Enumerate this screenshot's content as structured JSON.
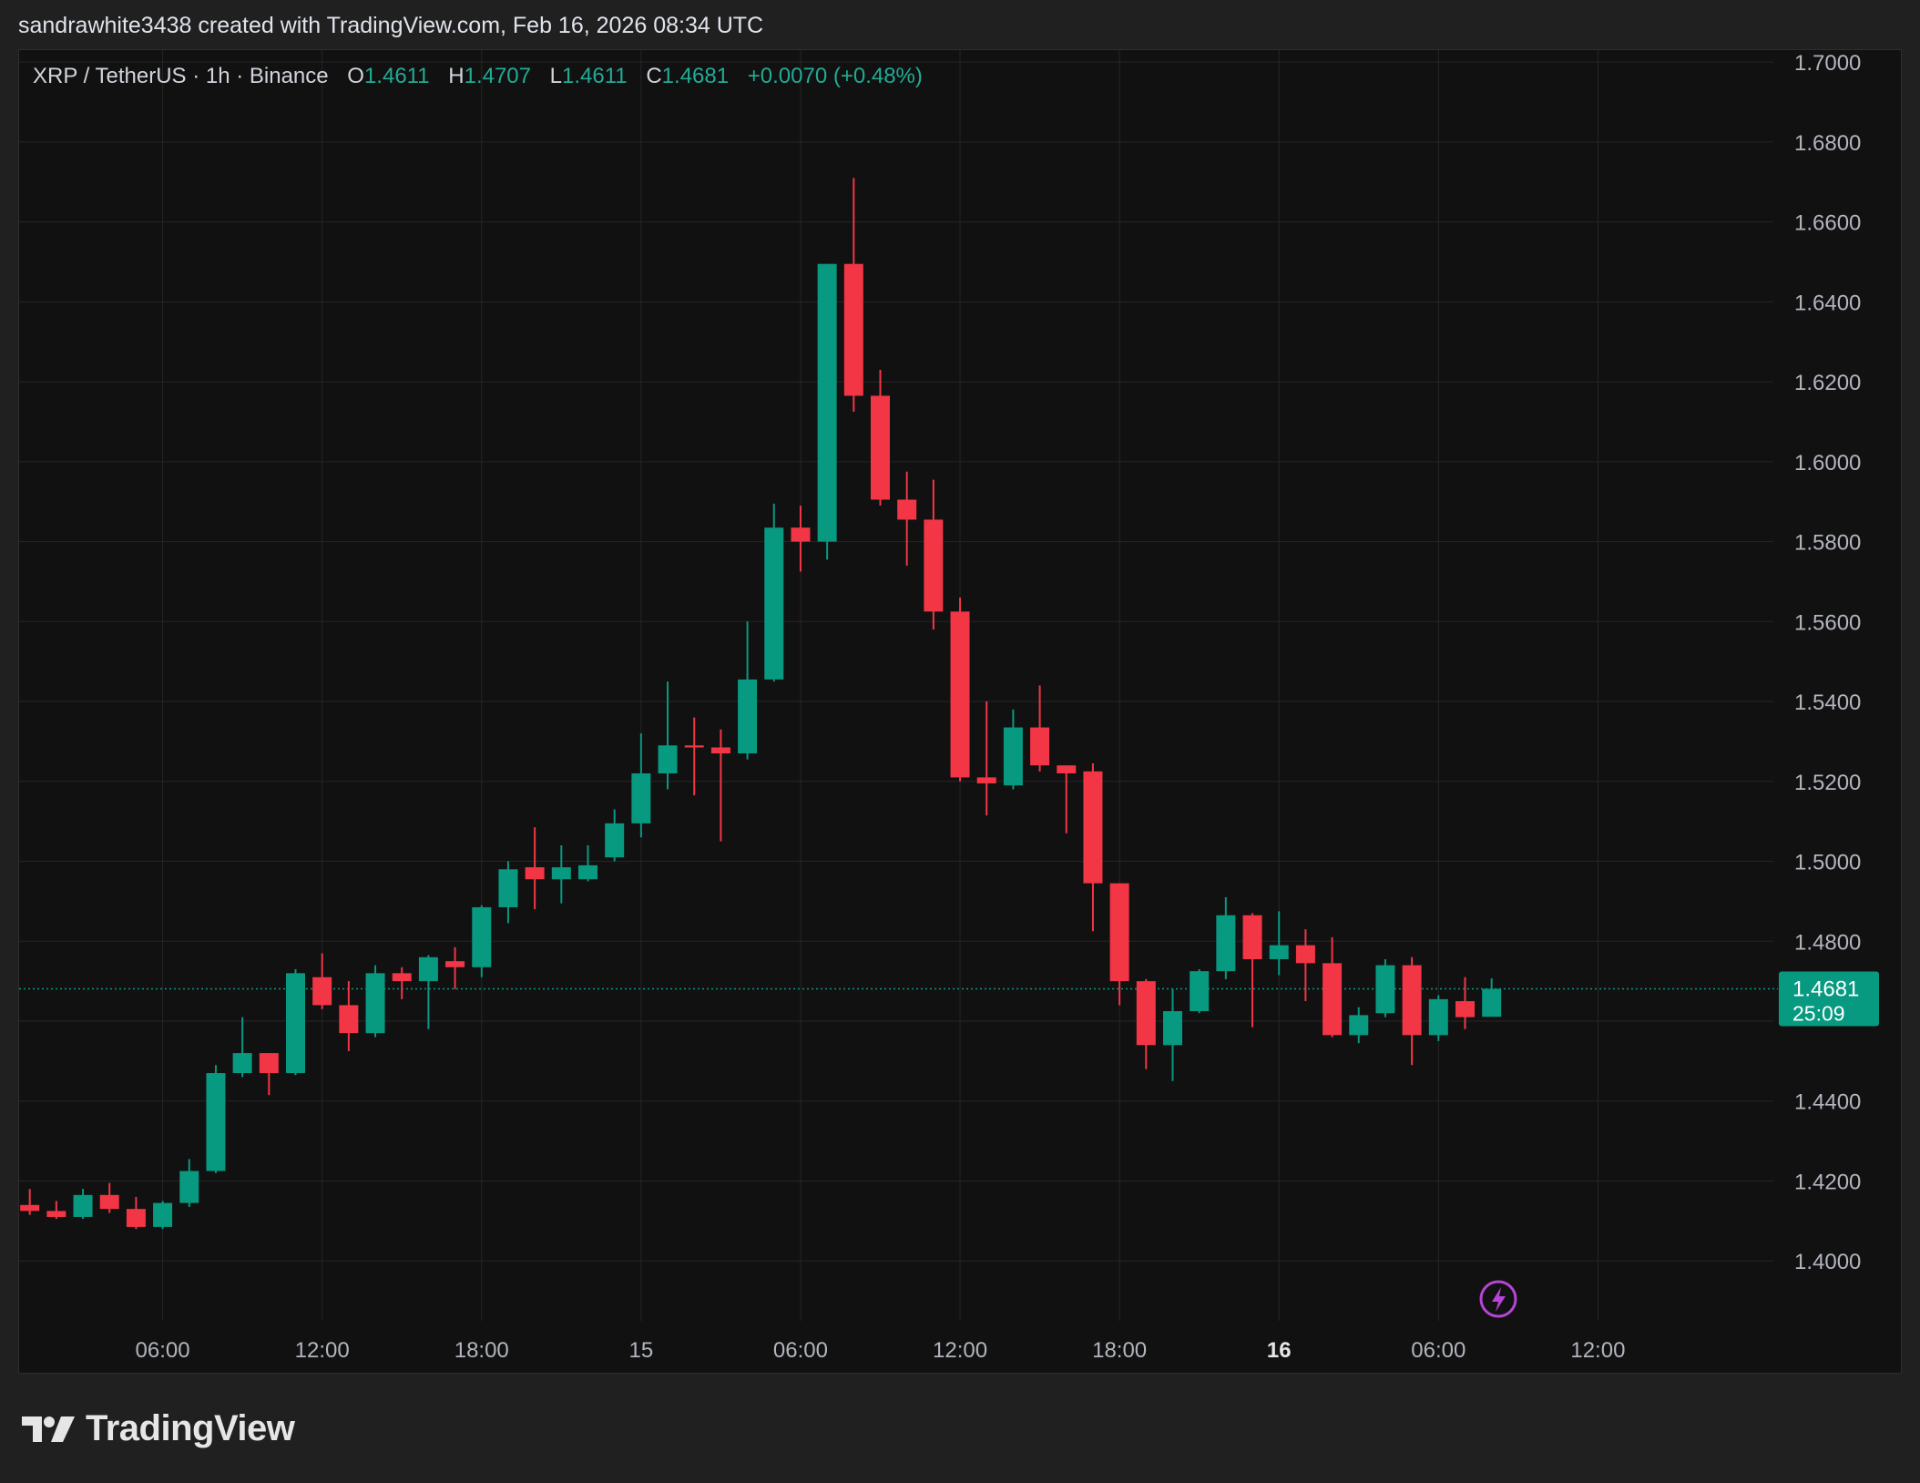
{
  "credit": "sandrawhite3438 created with TradingView.com, Feb 16, 2026 08:34 UTC",
  "legend": {
    "symbol": "XRP / TetherUS · 1h · Binance",
    "o_label": "O",
    "o": "1.4611",
    "h_label": "H",
    "h": "1.4707",
    "l_label": "L",
    "l": "1.4611",
    "c_label": "C",
    "c": "1.4681",
    "change": "+0.0070 (+0.48%)"
  },
  "price_tag": {
    "price": "1.4681",
    "countdown": "25:09"
  },
  "brand": "TradingView",
  "colors": {
    "up": "#089981",
    "down": "#f23645",
    "grid": "#262626",
    "axis_text": "#b2b5be",
    "legend_value": "#22ab94",
    "last_price_line": "#089981",
    "flash_icon": "#b545d6"
  },
  "icons": [
    "tradingview-logo-icon",
    "flash-icon"
  ],
  "chart_data": {
    "type": "candlestick",
    "title": "XRP / TetherUS · 1h · Binance",
    "interval": "1h",
    "y_axis_side": "right",
    "ylim": [
      1.385,
      1.703
    ],
    "y_ticks": [
      "1.7000",
      "1.6800",
      "1.6600",
      "1.6400",
      "1.6200",
      "1.6000",
      "1.5800",
      "1.5600",
      "1.5400",
      "1.5200",
      "1.5000",
      "1.4800",
      "1.4600",
      "1.4400",
      "1.4200",
      "1.4000"
    ],
    "y_tick_values": [
      1.7,
      1.68,
      1.66,
      1.64,
      1.62,
      1.6,
      1.58,
      1.56,
      1.54,
      1.52,
      1.5,
      1.48,
      1.46,
      1.44,
      1.42,
      1.4
    ],
    "y_hidden_ticks": [
      1.46
    ],
    "x_tick_labels": [
      "06:00",
      "12:00",
      "18:00",
      "15",
      "06:00",
      "12:00",
      "18:00",
      "16",
      "06:00",
      "12:00"
    ],
    "x_tick_hours": [
      6,
      12,
      18,
      24,
      30,
      36,
      42,
      48,
      54,
      60
    ],
    "x_tick_bold": [
      false,
      false,
      false,
      false,
      false,
      false,
      false,
      true,
      false,
      false
    ],
    "x_range_hours": [
      0.6,
      66.6
    ],
    "grid": true,
    "last_price": 1.4681,
    "candles": [
      {
        "h": 1,
        "o": 1.414,
        "hi": 1.418,
        "lo": 1.4115,
        "c": 1.4125
      },
      {
        "h": 2,
        "o": 1.4125,
        "hi": 1.415,
        "lo": 1.4105,
        "c": 1.411
      },
      {
        "h": 3,
        "o": 1.411,
        "hi": 1.418,
        "lo": 1.4105,
        "c": 1.4165
      },
      {
        "h": 4,
        "o": 1.4165,
        "hi": 1.4195,
        "lo": 1.412,
        "c": 1.413
      },
      {
        "h": 5,
        "o": 1.413,
        "hi": 1.416,
        "lo": 1.408,
        "c": 1.4085
      },
      {
        "h": 6,
        "o": 1.4085,
        "hi": 1.415,
        "lo": 1.408,
        "c": 1.4145
      },
      {
        "h": 7,
        "o": 1.4145,
        "hi": 1.4255,
        "lo": 1.4135,
        "c": 1.4225
      },
      {
        "h": 8,
        "o": 1.4225,
        "hi": 1.449,
        "lo": 1.422,
        "c": 1.447
      },
      {
        "h": 9,
        "o": 1.447,
        "hi": 1.461,
        "lo": 1.446,
        "c": 1.452
      },
      {
        "h": 10,
        "o": 1.452,
        "hi": 1.452,
        "lo": 1.4415,
        "c": 1.447
      },
      {
        "h": 11,
        "o": 1.447,
        "hi": 1.473,
        "lo": 1.4465,
        "c": 1.472
      },
      {
        "h": 12,
        "o": 1.471,
        "hi": 1.477,
        "lo": 1.463,
        "c": 1.464
      },
      {
        "h": 13,
        "o": 1.464,
        "hi": 1.47,
        "lo": 1.4525,
        "c": 1.457
      },
      {
        "h": 14,
        "o": 1.457,
        "hi": 1.474,
        "lo": 1.456,
        "c": 1.472
      },
      {
        "h": 15,
        "o": 1.472,
        "hi": 1.4735,
        "lo": 1.4655,
        "c": 1.47
      },
      {
        "h": 16,
        "o": 1.47,
        "hi": 1.4765,
        "lo": 1.458,
        "c": 1.476
      },
      {
        "h": 17,
        "o": 1.475,
        "hi": 1.4785,
        "lo": 1.468,
        "c": 1.4735
      },
      {
        "h": 18,
        "o": 1.4735,
        "hi": 1.489,
        "lo": 1.471,
        "c": 1.4885
      },
      {
        "h": 19,
        "o": 1.4885,
        "hi": 1.5,
        "lo": 1.4845,
        "c": 1.498
      },
      {
        "h": 20,
        "o": 1.4985,
        "hi": 1.5085,
        "lo": 1.488,
        "c": 1.4955
      },
      {
        "h": 21,
        "o": 1.4955,
        "hi": 1.504,
        "lo": 1.4895,
        "c": 1.4985
      },
      {
        "h": 22,
        "o": 1.4955,
        "hi": 1.504,
        "lo": 1.495,
        "c": 1.499
      },
      {
        "h": 23,
        "o": 1.501,
        "hi": 1.513,
        "lo": 1.5,
        "c": 1.5095
      },
      {
        "h": 24,
        "o": 1.5095,
        "hi": 1.532,
        "lo": 1.506,
        "c": 1.522
      },
      {
        "h": 25,
        "o": 1.522,
        "hi": 1.545,
        "lo": 1.518,
        "c": 1.529
      },
      {
        "h": 26,
        "o": 1.529,
        "hi": 1.536,
        "lo": 1.5165,
        "c": 1.5285
      },
      {
        "h": 27,
        "o": 1.5285,
        "hi": 1.533,
        "lo": 1.505,
        "c": 1.527
      },
      {
        "h": 28,
        "o": 1.527,
        "hi": 1.56,
        "lo": 1.5255,
        "c": 1.5455
      },
      {
        "h": 29,
        "o": 1.5455,
        "hi": 1.5895,
        "lo": 1.545,
        "c": 1.5835
      },
      {
        "h": 30,
        "o": 1.5835,
        "hi": 1.589,
        "lo": 1.5725,
        "c": 1.58
      },
      {
        "h": 31,
        "o": 1.58,
        "hi": 1.6495,
        "lo": 1.5755,
        "c": 1.6495
      },
      {
        "h": 32,
        "o": 1.6495,
        "hi": 1.671,
        "lo": 1.6125,
        "c": 1.6165
      },
      {
        "h": 33,
        "o": 1.6165,
        "hi": 1.623,
        "lo": 1.589,
        "c": 1.5905
      },
      {
        "h": 34,
        "o": 1.5905,
        "hi": 1.5975,
        "lo": 1.574,
        "c": 1.5855
      },
      {
        "h": 35,
        "o": 1.5855,
        "hi": 1.5955,
        "lo": 1.558,
        "c": 1.5625
      },
      {
        "h": 36,
        "o": 1.5625,
        "hi": 1.566,
        "lo": 1.52,
        "c": 1.521
      },
      {
        "h": 37,
        "o": 1.521,
        "hi": 1.54,
        "lo": 1.5115,
        "c": 1.5195
      },
      {
        "h": 38,
        "o": 1.519,
        "hi": 1.538,
        "lo": 1.518,
        "c": 1.5335
      },
      {
        "h": 39,
        "o": 1.5335,
        "hi": 1.544,
        "lo": 1.5225,
        "c": 1.524
      },
      {
        "h": 40,
        "o": 1.524,
        "hi": 1.524,
        "lo": 1.507,
        "c": 1.522
      },
      {
        "h": 41,
        "o": 1.5225,
        "hi": 1.5245,
        "lo": 1.4825,
        "c": 1.4945
      },
      {
        "h": 42,
        "o": 1.4945,
        "hi": 1.4945,
        "lo": 1.464,
        "c": 1.47
      },
      {
        "h": 43,
        "o": 1.47,
        "hi": 1.4705,
        "lo": 1.448,
        "c": 1.454
      },
      {
        "h": 44,
        "o": 1.454,
        "hi": 1.468,
        "lo": 1.445,
        "c": 1.4625
      },
      {
        "h": 45,
        "o": 1.4625,
        "hi": 1.473,
        "lo": 1.462,
        "c": 1.4725
      },
      {
        "h": 46,
        "o": 1.4725,
        "hi": 1.491,
        "lo": 1.4705,
        "c": 1.4865
      },
      {
        "h": 47,
        "o": 1.4865,
        "hi": 1.487,
        "lo": 1.4585,
        "c": 1.4755
      },
      {
        "h": 48,
        "o": 1.4755,
        "hi": 1.4875,
        "lo": 1.4715,
        "c": 1.479
      },
      {
        "h": 49,
        "o": 1.479,
        "hi": 1.483,
        "lo": 1.465,
        "c": 1.4745
      },
      {
        "h": 50,
        "o": 1.4745,
        "hi": 1.481,
        "lo": 1.456,
        "c": 1.4565
      },
      {
        "h": 51,
        "o": 1.4565,
        "hi": 1.4635,
        "lo": 1.4545,
        "c": 1.4615
      },
      {
        "h": 52,
        "o": 1.462,
        "hi": 1.4755,
        "lo": 1.461,
        "c": 1.474
      },
      {
        "h": 53,
        "o": 1.474,
        "hi": 1.476,
        "lo": 1.449,
        "c": 1.4565
      },
      {
        "h": 54,
        "o": 1.4565,
        "hi": 1.4665,
        "lo": 1.455,
        "c": 1.4655
      },
      {
        "h": 55,
        "o": 1.465,
        "hi": 1.471,
        "lo": 1.458,
        "c": 1.461
      },
      {
        "h": 56,
        "o": 1.4611,
        "hi": 1.4707,
        "lo": 1.4611,
        "c": 1.4681
      }
    ]
  }
}
